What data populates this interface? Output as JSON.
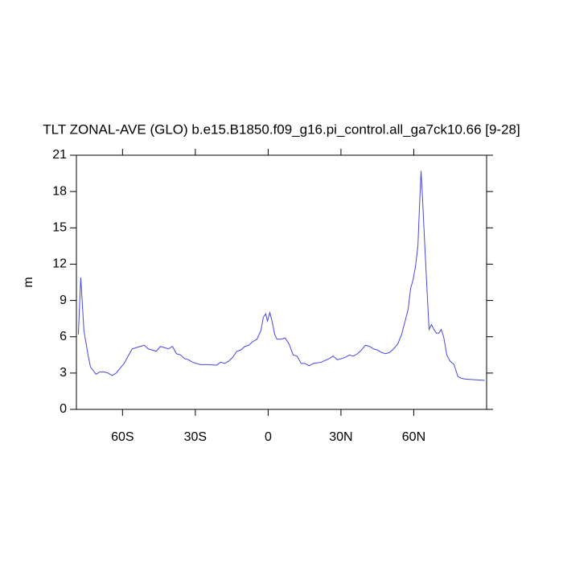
{
  "chart_data": {
    "type": "line",
    "title": "TLT ZONAL-AVE (GLO) b.e15.B1850.f09_g16.pi_control.all_ga7ck10.66 [9-28]",
    "y_label": "m",
    "xlim": [
      -79,
      90
    ],
    "xticks": [
      {
        "value": -60,
        "label": "60S"
      },
      {
        "value": -30,
        "label": "30S"
      },
      0,
      {
        "value": 30,
        "label": "30N"
      },
      {
        "value": 60,
        "label": "60N"
      }
    ],
    "ylim": [
      0,
      21
    ],
    "yticks": [
      0,
      3,
      6,
      9,
      12,
      15,
      18,
      21
    ],
    "series": [
      {
        "color": "#4646e6",
        "x": [
          -78.2,
          -77.2,
          -75.9,
          -74.2,
          -73.2,
          -70.9,
          -69.3,
          -67.6,
          -65.9,
          -64.3,
          -62.6,
          -61,
          -59.3,
          -57.7,
          -56,
          -54.4,
          -52.7,
          -51,
          -49.4,
          -47.7,
          -46.1,
          -44.4,
          -42.7,
          -41.1,
          -39.4,
          -37.8,
          -36.1,
          -34.5,
          -32.8,
          -31.2,
          -27.8,
          -24.5,
          -21.2,
          -19.6,
          -17.9,
          -16.2,
          -14.6,
          -12.9,
          -11.3,
          -9.6,
          -8,
          -6.3,
          -4.6,
          -3,
          -2,
          -1,
          -0.3,
          0.7,
          1.7,
          2.7,
          3.6,
          5.3,
          7,
          8.6,
          10.3,
          11.9,
          13.6,
          15.2,
          16.9,
          18.6,
          21.9,
          25.2,
          26.8,
          28.5,
          30.2,
          31.8,
          33.5,
          35.1,
          36.8,
          38.4,
          40.1,
          41.8,
          43.4,
          45.1,
          46.7,
          48.4,
          50,
          51.7,
          53.4,
          55,
          56.7,
          57.7,
          58.7,
          59.7,
          60.7,
          61.7,
          62.3,
          63,
          63.6,
          64.3,
          65.3,
          66.3,
          67.3,
          68.3,
          69.3,
          70.3,
          71.3,
          72.3,
          73.6,
          74.9,
          76.6,
          78.2,
          79.9,
          81.5,
          84.9,
          89.2
        ],
        "values": [
          6.2,
          10.9,
          6.5,
          4.5,
          3.5,
          2.9,
          3.1,
          3.1,
          3.0,
          2.8,
          3.0,
          3.4,
          3.8,
          4.4,
          5.0,
          5.1,
          5.2,
          5.3,
          5.0,
          4.9,
          4.8,
          5.2,
          5.1,
          5.0,
          5.2,
          4.6,
          4.5,
          4.2,
          4.1,
          3.9,
          3.7,
          3.7,
          3.65,
          3.9,
          3.8,
          4.0,
          4.3,
          4.8,
          4.9,
          5.2,
          5.3,
          5.6,
          5.8,
          6.5,
          7.6,
          7.9,
          7.3,
          8.0,
          7.2,
          6.2,
          5.8,
          5.8,
          5.9,
          5.4,
          4.5,
          4.4,
          3.8,
          3.8,
          3.6,
          3.8,
          3.9,
          4.2,
          4.4,
          4.1,
          4.2,
          4.3,
          4.5,
          4.4,
          4.6,
          4.9,
          5.3,
          5.2,
          5.0,
          4.9,
          4.7,
          4.6,
          4.7,
          5.0,
          5.4,
          6.2,
          7.5,
          8.3,
          10.0,
          10.7,
          11.8,
          13.5,
          16.5,
          19.7,
          17.5,
          14.5,
          10.5,
          6.6,
          7.0,
          6.6,
          6.3,
          6.3,
          6.6,
          6.0,
          4.5,
          4.0,
          3.7,
          2.7,
          2.55,
          2.5,
          2.45,
          2.4
        ]
      }
    ]
  }
}
